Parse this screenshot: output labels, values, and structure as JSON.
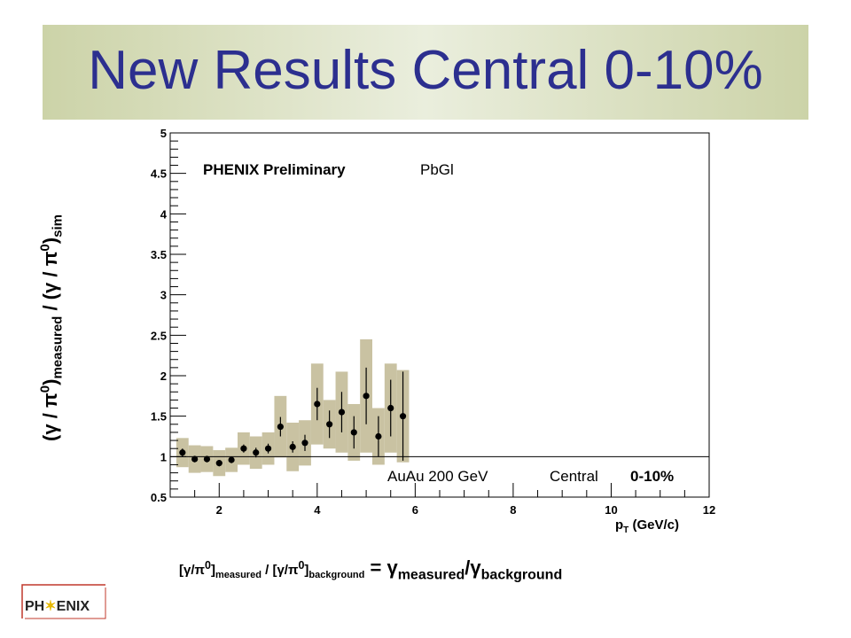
{
  "slide": {
    "title": "New Results Central 0-10%"
  },
  "chart_data": {
    "type": "scatter",
    "title": "",
    "xlabel": "pT (GeV/c)",
    "ylabel": "(γ / π0)measured / (γ / π0)sim",
    "xlim": [
      1,
      12
    ],
    "ylim": [
      0.5,
      5
    ],
    "x_ticks": [
      2,
      4,
      6,
      8,
      10,
      12
    ],
    "y_ticks": [
      0.5,
      1,
      1.5,
      2,
      2.5,
      3,
      3.5,
      4,
      4.5,
      5
    ],
    "reference_line_y": 1,
    "grid": false,
    "series": [
      {
        "points": [
          {
            "x": 1.25,
            "y": 1.05,
            "err": 0.05,
            "sys": 0.18
          },
          {
            "x": 1.5,
            "y": 0.97,
            "err": 0.04,
            "sys": 0.17
          },
          {
            "x": 1.75,
            "y": 0.97,
            "err": 0.04,
            "sys": 0.16
          },
          {
            "x": 2.0,
            "y": 0.92,
            "err": 0.04,
            "sys": 0.16
          },
          {
            "x": 2.25,
            "y": 0.96,
            "err": 0.04,
            "sys": 0.15
          },
          {
            "x": 2.5,
            "y": 1.1,
            "err": 0.05,
            "sys": 0.2
          },
          {
            "x": 2.75,
            "y": 1.05,
            "err": 0.06,
            "sys": 0.2
          },
          {
            "x": 3.0,
            "y": 1.1,
            "err": 0.06,
            "sys": 0.2
          },
          {
            "x": 3.25,
            "y": 1.37,
            "err": 0.12,
            "sys": 0.38
          },
          {
            "x": 3.5,
            "y": 1.12,
            "err": 0.07,
            "sys": 0.3
          },
          {
            "x": 3.75,
            "y": 1.17,
            "err": 0.1,
            "sys": 0.28
          },
          {
            "x": 4.0,
            "y": 1.65,
            "err": 0.2,
            "sys": 0.5
          },
          {
            "x": 4.25,
            "y": 1.4,
            "err": 0.17,
            "sys": 0.3
          },
          {
            "x": 4.5,
            "y": 1.55,
            "err": 0.25,
            "sys": 0.5
          },
          {
            "x": 4.75,
            "y": 1.3,
            "err": 0.2,
            "sys": 0.35
          },
          {
            "x": 5.0,
            "y": 1.75,
            "err": 0.35,
            "sys": 0.7
          },
          {
            "x": 5.25,
            "y": 1.25,
            "err": 0.25,
            "sys": 0.35
          },
          {
            "x": 5.5,
            "y": 1.6,
            "err": 0.35,
            "sys": 0.55
          },
          {
            "x": 5.75,
            "y": 1.5,
            "err": 0.55,
            "sys": 0.57
          }
        ]
      }
    ],
    "annotations": {
      "experiment": "PHENIX Preliminary",
      "detector": "PbGl",
      "system": "AuAu 200 GeV",
      "centrality_label": "Central",
      "centrality_value": "0-10%"
    }
  },
  "ylabel_parts": {
    "open": "(γ / π",
    "sup0": "0",
    "close_measured": ")",
    "sub_measured": "measured",
    "mid": " / (γ / π",
    "sup0b": "0",
    "close_sim": ")",
    "sub_sim": "sim"
  },
  "xlabel_parts": {
    "p": "p",
    "sub_t": "T",
    "units": " (GeV/c)"
  },
  "formula": {
    "lhs_open": "[γ/π",
    "lhs_sup": "0",
    "lhs_close": "]",
    "lhs_sub": "measured",
    "divider": " / ",
    "rhs_open": "[γ/π",
    "rhs_sup": "0",
    "rhs_close": "]",
    "rhs_sub": "background",
    "equals": " = ",
    "gamma_num": "γ",
    "num_sub": "measured",
    "slash": "/",
    "gamma_den": "γ",
    "den_sub": "background"
  },
  "logo": {
    "left": "PH",
    "star": "✶",
    "right": "ENIX"
  }
}
